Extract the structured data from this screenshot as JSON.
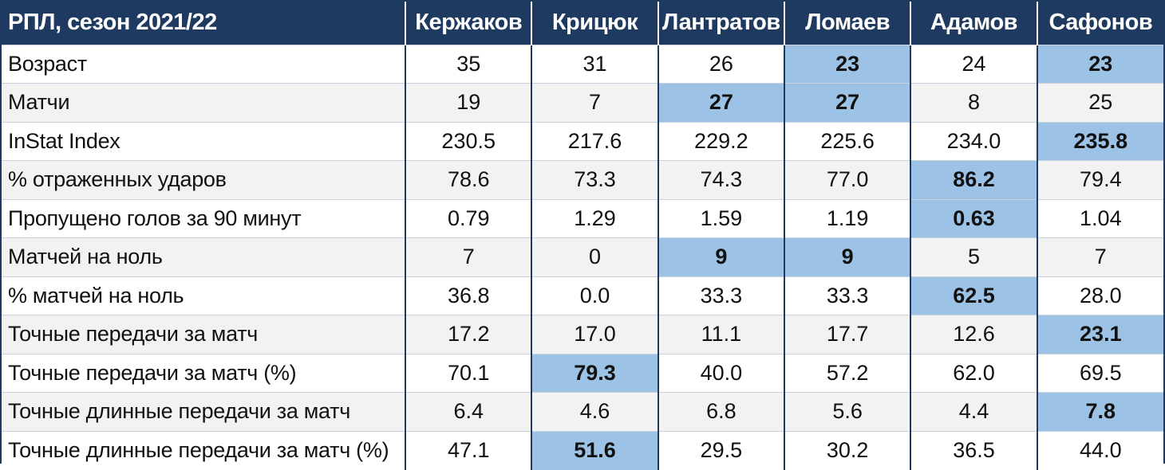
{
  "table": {
    "corner": "РПЛ, сезон 2021/22",
    "columns": [
      "Кержаков",
      "Крицюк",
      "Лантратов",
      "Ломаев",
      "Адамов",
      "Сафонов"
    ],
    "rows": [
      {
        "label": "Возраст",
        "values": [
          "35",
          "31",
          "26",
          "23",
          "24",
          "23"
        ],
        "highlight": [
          3,
          5
        ]
      },
      {
        "label": "Матчи",
        "values": [
          "19",
          "7",
          "27",
          "27",
          "8",
          "25"
        ],
        "highlight": [
          2,
          3
        ]
      },
      {
        "label": "InStat Index",
        "values": [
          "230.5",
          "217.6",
          "229.2",
          "225.6",
          "234.0",
          "235.8"
        ],
        "highlight": [
          5
        ]
      },
      {
        "label": "% отраженных ударов",
        "values": [
          "78.6",
          "73.3",
          "74.3",
          "77.0",
          "86.2",
          "79.4"
        ],
        "highlight": [
          4
        ]
      },
      {
        "label": "Пропущено голов за 90 минут",
        "values": [
          "0.79",
          "1.29",
          "1.59",
          "1.19",
          "0.63",
          "1.04"
        ],
        "highlight": [
          4
        ]
      },
      {
        "label": "Матчей на ноль",
        "values": [
          "7",
          "0",
          "9",
          "9",
          "5",
          "7"
        ],
        "highlight": [
          2,
          3
        ]
      },
      {
        "label": "% матчей на ноль",
        "values": [
          "36.8",
          "0.0",
          "33.3",
          "33.3",
          "62.5",
          "28.0"
        ],
        "highlight": [
          4
        ]
      },
      {
        "label": "Точные передачи за матч",
        "values": [
          "17.2",
          "17.0",
          "11.1",
          "17.7",
          "12.6",
          "23.1"
        ],
        "highlight": [
          5
        ]
      },
      {
        "label": "Точные передачи за матч (%)",
        "values": [
          "70.1",
          "79.3",
          "40.0",
          "57.2",
          "62.0",
          "69.5"
        ],
        "highlight": [
          1
        ]
      },
      {
        "label": "Точные длинные передачи за матч",
        "values": [
          "6.4",
          "4.6",
          "6.8",
          "5.6",
          "4.4",
          "7.8"
        ],
        "highlight": [
          5
        ]
      },
      {
        "label": "Точные длинные передачи за матч (%)",
        "values": [
          "47.1",
          "51.6",
          "29.5",
          "30.2",
          "36.5",
          "44.0"
        ],
        "highlight": [
          1
        ]
      }
    ]
  },
  "colors": {
    "header_bg": "#1f3a60",
    "header_text": "#ffffff",
    "highlight": "#9cc3e6",
    "row_alt": "#f2f2f2"
  }
}
